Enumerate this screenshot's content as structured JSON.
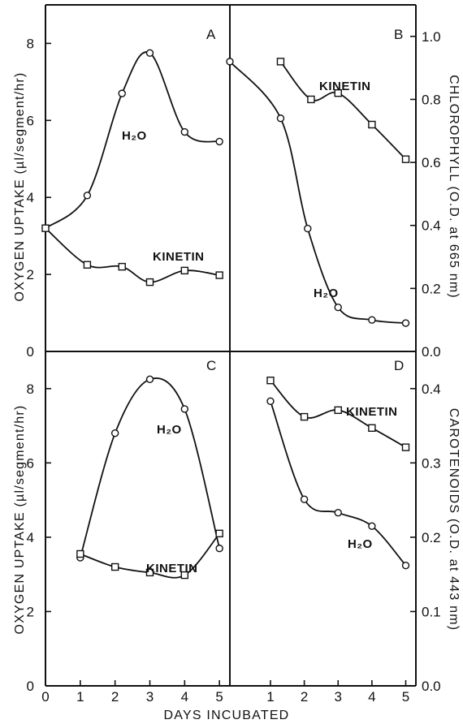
{
  "figure": {
    "x_axis_label": "DAYS INCUBATED",
    "x_ticks": [
      "0",
      "1",
      "2",
      "3",
      "4",
      "5"
    ]
  },
  "chart_data": [
    {
      "type": "line",
      "panel": "A",
      "ylabel": "OXYGEN UPTAKE (µl/segment/hr)",
      "ylim": [
        0,
        9
      ],
      "yticks": [
        "0",
        "2",
        "4",
        "6",
        "8"
      ],
      "xlim": [
        0,
        5.3
      ],
      "series": [
        {
          "name": "H₂O",
          "marker": "circle",
          "x": [
            0,
            1.2,
            2.2,
            3,
            4,
            5
          ],
          "y": [
            3.2,
            4.05,
            6.7,
            7.75,
            5.7,
            5.45
          ]
        },
        {
          "name": "KINETIN",
          "marker": "square",
          "x": [
            0,
            1.2,
            2.2,
            3,
            4,
            5
          ],
          "y": [
            3.2,
            2.25,
            2.2,
            1.8,
            2.1,
            1.98
          ]
        }
      ]
    },
    {
      "type": "line",
      "panel": "B",
      "ylabel": "CHLOROPHYLL (O.D. at 665 nm)",
      "ylim": [
        0,
        1.1
      ],
      "yticks": [
        "0.0",
        "0.2",
        "0.4",
        "0.6",
        "0.8",
        "1.0"
      ],
      "xlim": [
        -0.2,
        5.3
      ],
      "series": [
        {
          "name": "H₂O",
          "marker": "circle",
          "x": [
            -0.2,
            1.3,
            2.1,
            3,
            4,
            5
          ],
          "y": [
            0.92,
            0.74,
            0.39,
            0.14,
            0.1,
            0.09
          ]
        },
        {
          "name": "KINETIN",
          "marker": "square",
          "x": [
            1.3,
            2.2,
            3,
            4,
            5
          ],
          "y": [
            0.92,
            0.8,
            0.82,
            0.72,
            0.61
          ]
        }
      ]
    },
    {
      "type": "line",
      "panel": "C",
      "ylabel": "OXYGEN UPTAKE (µl/segment/hr)",
      "ylim": [
        0,
        9
      ],
      "yticks": [
        "0",
        "2",
        "4",
        "6",
        "8"
      ],
      "xlim": [
        0,
        5.3
      ],
      "series": [
        {
          "name": "H₂O",
          "marker": "circle",
          "x": [
            1,
            2,
            3,
            4,
            5
          ],
          "y": [
            3.45,
            6.8,
            8.25,
            7.45,
            3.7
          ]
        },
        {
          "name": "KINETIN",
          "marker": "square",
          "x": [
            1,
            2,
            3,
            4,
            5
          ],
          "y": [
            3.55,
            3.2,
            3.05,
            2.98,
            4.1
          ]
        }
      ]
    },
    {
      "type": "line",
      "panel": "D",
      "ylabel": "CAROTENOIDS (O.D. at 443 nm)",
      "ylim": [
        0,
        0.45
      ],
      "yticks": [
        "0.0",
        "0.1",
        "0.2",
        "0.3",
        "0.4"
      ],
      "xlim": [
        -0.2,
        5.3
      ],
      "series": [
        {
          "name": "H₂O",
          "marker": "circle",
          "x": [
            1,
            2,
            3,
            4,
            5
          ],
          "y": [
            0.383,
            0.251,
            0.233,
            0.215,
            0.162
          ]
        },
        {
          "name": "KINETIN",
          "marker": "square",
          "x": [
            1,
            2,
            3,
            4,
            5
          ],
          "y": [
            0.411,
            0.362,
            0.371,
            0.347,
            0.321
          ]
        }
      ]
    }
  ]
}
